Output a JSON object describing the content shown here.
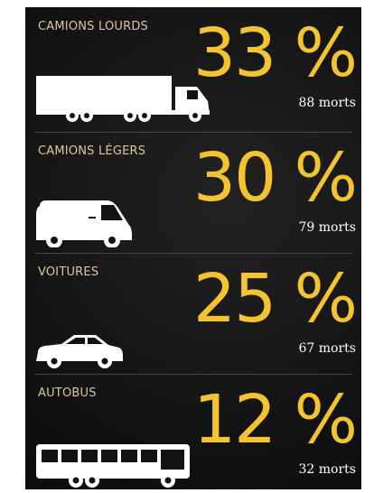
{
  "items": [
    {
      "label": "CAMIONS LOURDS",
      "percent": "33 %",
      "deaths": "88 morts"
    },
    {
      "label": "CAMIONS LÉGERS",
      "percent": "30 %",
      "deaths": "79 morts"
    },
    {
      "label": "VOITURES",
      "percent": "25 %",
      "deaths": "67 morts"
    },
    {
      "label": "AUTOBUS",
      "percent": "12 %",
      "deaths": "32 morts"
    }
  ]
}
